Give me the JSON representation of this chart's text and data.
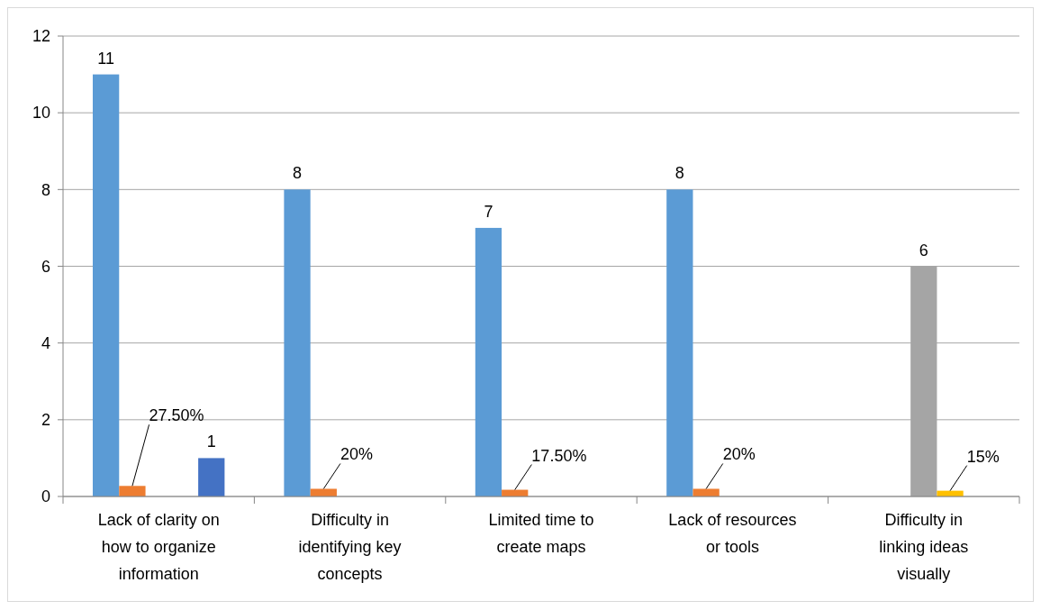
{
  "chart_data": {
    "type": "bar",
    "categories": [
      "Lack of clarity on how to organize information",
      "Difficulty in identifying key concepts",
      "Limited time to create maps",
      "Lack of resources or tools",
      "Difficulty in linking ideas visually"
    ],
    "series": [
      {
        "color": "#5b9bd5",
        "values": [
          11,
          8,
          7,
          8,
          null
        ],
        "value_labels": [
          "11",
          "8",
          "7",
          "8",
          null
        ]
      },
      {
        "color": "#ed7d31",
        "values": [
          0.275,
          0.2,
          0.175,
          0.2,
          null
        ],
        "value_labels": [
          "27.50%",
          "20%",
          "17.50%",
          "20%",
          null
        ]
      },
      {
        "color": "#a5a5a5",
        "values": [
          null,
          null,
          null,
          null,
          6
        ],
        "value_labels": [
          null,
          null,
          null,
          null,
          "6"
        ]
      },
      {
        "color": "#ffc000",
        "values": [
          null,
          null,
          null,
          null,
          0.15
        ],
        "value_labels": [
          null,
          null,
          null,
          null,
          "15%"
        ]
      },
      {
        "color": "#4472c4",
        "values": [
          1,
          null,
          null,
          null,
          null
        ],
        "value_labels": [
          "1",
          null,
          null,
          null,
          null
        ]
      }
    ],
    "ylim": [
      0,
      12
    ],
    "yticks": [
      0,
      2,
      4,
      6,
      8,
      10,
      12
    ],
    "grid": "y"
  }
}
